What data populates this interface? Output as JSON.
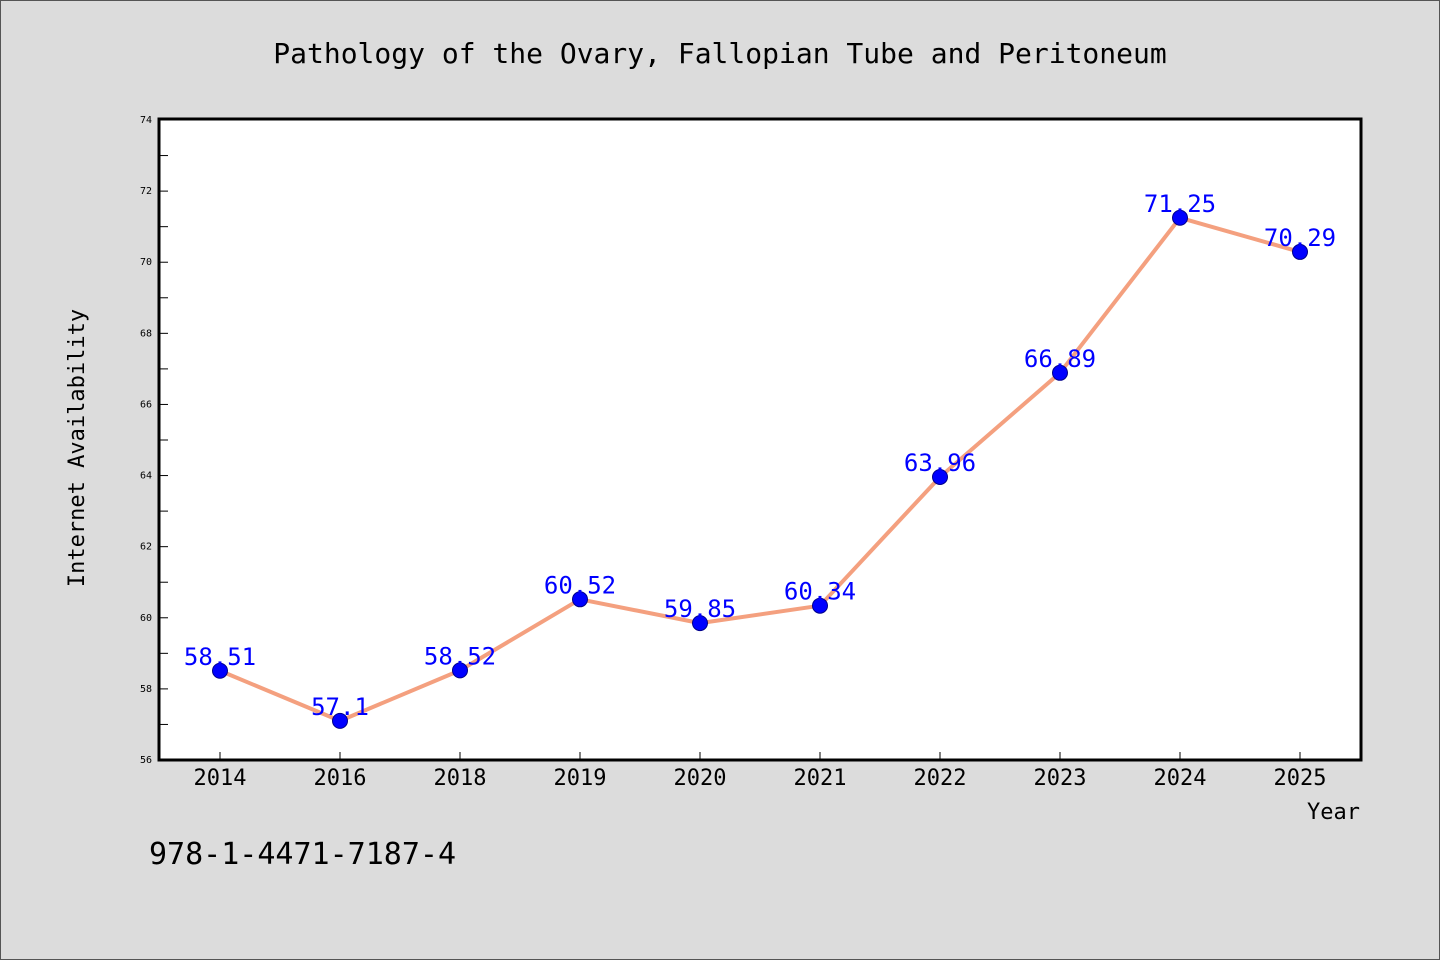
{
  "chart_data": {
    "type": "line",
    "title": "Pathology of the Ovary, Fallopian Tube and Peritoneum",
    "xlabel": "Year",
    "ylabel": "Internet Availability",
    "categories": [
      "2014",
      "2016",
      "2018",
      "2019",
      "2020",
      "2021",
      "2022",
      "2023",
      "2024",
      "2025"
    ],
    "series": [
      {
        "values": [
          58.51,
          57.1,
          58.52,
          60.52,
          59.85,
          60.34,
          63.96,
          66.89,
          71.25,
          70.29
        ],
        "data_labels": [
          "58.51",
          "57.1",
          "58.52",
          "60.52",
          "59.85",
          "60.34",
          "63.96",
          "66.89",
          "71.25",
          "70.29"
        ],
        "line_color": "#f4a07f",
        "marker_color": "#0000ff"
      }
    ],
    "ylim": [
      56,
      74
    ],
    "yticks": [
      "56",
      "58",
      "60",
      "62",
      "64",
      "66",
      "68",
      "70",
      "72",
      "74"
    ],
    "grid": false,
    "legend": "none"
  },
  "footer_text": "978-1-4471-7187-4",
  "colors": {
    "background": "#dcdcdc",
    "plot_background": "#ffffff",
    "line": "#f4a07f",
    "marker": "#0000ff",
    "data_label": "#0000ff"
  }
}
